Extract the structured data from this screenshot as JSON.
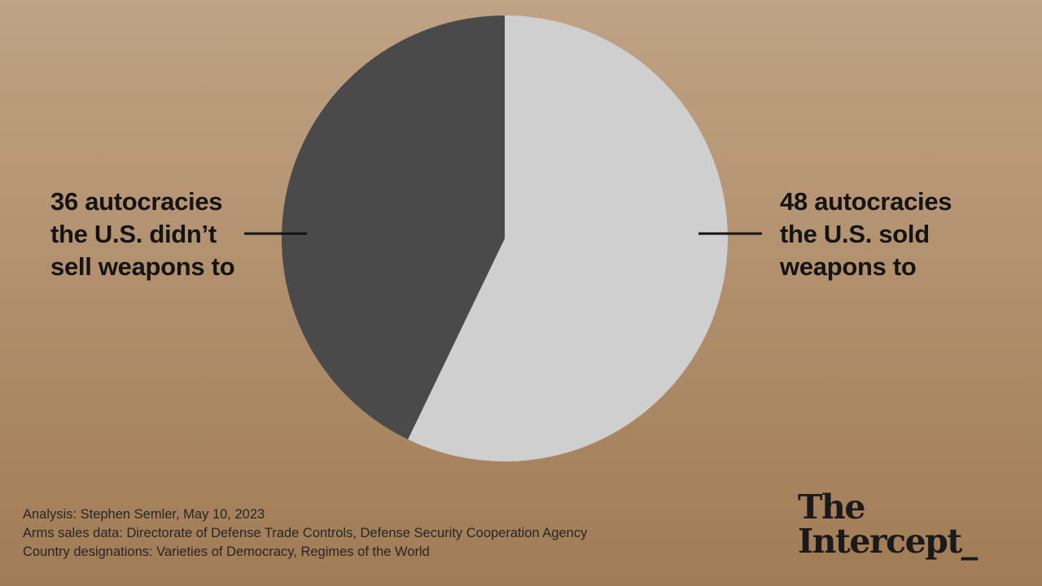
{
  "chart_data": {
    "type": "pie",
    "slices": [
      {
        "label_lines": [
          "48 autocracies",
          "the U.S. sold",
          "weapons to"
        ],
        "value": 48,
        "color": "#cfcfcf"
      },
      {
        "label_lines": [
          "36 autocracies",
          "the U.S. didn’t",
          "sell weapons to"
        ],
        "value": 36,
        "color": "#4a4a4a"
      }
    ]
  },
  "footer": {
    "lines": [
      "Analysis: Stephen Semler, May 10, 2023",
      "Arms sales data: Directorate of Defense Trade Controls, Defense Security Cooperation Agency",
      "Country designations: Varieties of Democracy, Regimes of the World"
    ]
  },
  "logo": {
    "line1": "The",
    "line2": "Intercept_"
  }
}
